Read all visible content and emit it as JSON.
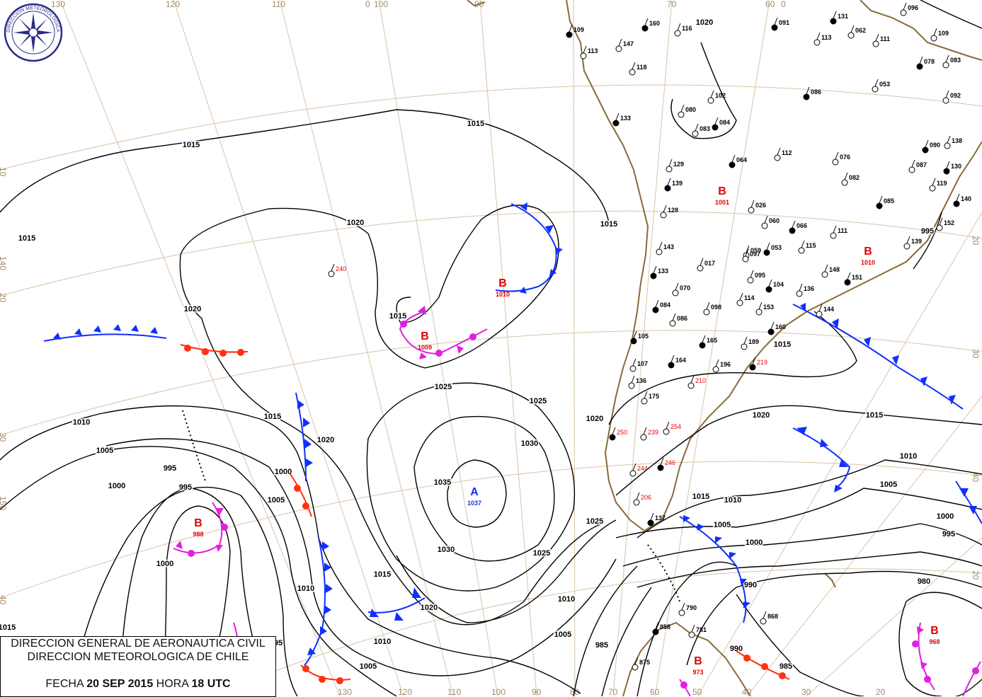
{
  "logo": {
    "text": "DIRECCION METEOROLOGICA CHILE"
  },
  "title_box": {
    "line1": "DIRECCION GENERAL DE AERONAUTICA CIVIL",
    "line2": "DIRECCION METEOROLOGICA DE CHILE",
    "date_label": "FECHA",
    "date": "20 SEP 2015",
    "time_label": "HORA",
    "time": "18 UTC"
  },
  "grid_labels": {
    "top": [
      "130",
      "120",
      "110",
      "0",
      "100",
      "90",
      "70",
      "60",
      "0"
    ],
    "bottom": [
      "130",
      "120",
      "110",
      "100",
      "90",
      "80",
      "70",
      "60",
      "50",
      "40",
      "30",
      "20"
    ],
    "left": [
      "10",
      "140",
      "20",
      "30",
      "150",
      "40"
    ],
    "right": [
      "20",
      "30",
      "40",
      "20"
    ]
  },
  "pressure_centers": [
    {
      "type": "A",
      "value": "1037",
      "color": "#1030ff"
    },
    {
      "type": "B",
      "value": "1010",
      "color": "#e00000"
    },
    {
      "type": "B",
      "value": "1009",
      "color": "#e00000"
    },
    {
      "type": "B",
      "value": "988",
      "color": "#e00000"
    },
    {
      "type": "B",
      "value": "1001",
      "color": "#e00000"
    },
    {
      "type": "B",
      "value": "1010",
      "color": "#e00000"
    },
    {
      "type": "B",
      "value": "973",
      "color": "#e00000"
    },
    {
      "type": "B",
      "value": "968",
      "color": "#e00000"
    }
  ],
  "isobar_labels": [
    "1015",
    "1015",
    "1015",
    "1020",
    "1020",
    "1015",
    "1015",
    "1025",
    "1025",
    "1030",
    "1035",
    "1030",
    "1025",
    "1020",
    "1020",
    "1015",
    "1015",
    "1010",
    "1005",
    "1000",
    "995",
    "995",
    "1000",
    "1010",
    "1005",
    "1000",
    "995",
    "1010",
    "1005",
    "1020",
    "1025",
    "1015",
    "1010",
    "1005",
    "1000",
    "990",
    "985",
    "980",
    "995",
    "1000",
    "1005",
    "1010",
    "1015",
    "1020",
    "1015",
    "1010",
    "1005",
    "985",
    "990",
    "995",
    "1015",
    "1020"
  ],
  "stations": [
    "109",
    "113",
    "147",
    "160",
    "116",
    "118",
    "133",
    "080",
    "083",
    "084",
    "102",
    "129",
    "139",
    "128",
    "143",
    "133",
    "017",
    "070",
    "084",
    "086",
    "098",
    "105",
    "107",
    "136",
    "164",
    "175",
    "210",
    "165",
    "196",
    "189",
    "219",
    "153",
    "114",
    "160",
    "136",
    "144",
    "151",
    "148",
    "115",
    "053",
    "059",
    "095",
    "104",
    "112",
    "060",
    "066",
    "111",
    "139",
    "140",
    "152",
    "138",
    "130",
    "119",
    "087",
    "090",
    "092",
    "083",
    "078",
    "109",
    "111",
    "131",
    "113",
    "062",
    "091",
    "096",
    "053",
    "086",
    "076",
    "082",
    "085",
    "026",
    "240",
    "250",
    "254",
    "239",
    "246",
    "244",
    "206",
    "137",
    "790",
    "781",
    "858",
    "875",
    "868",
    "064",
    "097"
  ],
  "colors": {
    "cold_front": "#1030ff",
    "warm_front": "#ff3010",
    "occluded_front": "#e020e0",
    "isobar": "#000000",
    "coastline": "#8a6a3a",
    "grid": "#d9c4a8"
  }
}
